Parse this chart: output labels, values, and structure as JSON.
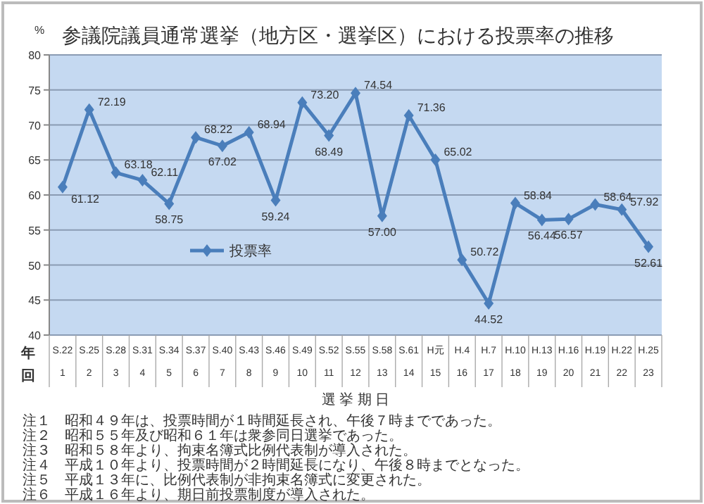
{
  "chart_data": {
    "type": "line",
    "title": "参議院議員通常選挙（地方区・選挙区）における投票率の推移",
    "ylabel": "%",
    "xlabel": "選 挙 期 日",
    "categories": [
      "S.22\n1",
      "S.25\n2",
      "S.28\n3",
      "S.31\n4",
      "S.34\n5",
      "S.37\n6",
      "S.40\n7",
      "S.43\n8",
      "S.46\n9",
      "S.49\n10",
      "S.52\n11",
      "S.55\n12",
      "S.58\n13",
      "S.61\n14",
      "H元\n15",
      "H.4\n16",
      "H.7\n17",
      "H.10\n18",
      "H.13\n19",
      "H.16\n20",
      "H.19\n21",
      "H.22\n22",
      "H.25\n23"
    ],
    "series": [
      {
        "name": "投票率",
        "color": "#4a7ebb",
        "values": [
          61.12,
          72.19,
          63.18,
          62.11,
          58.75,
          68.22,
          67.02,
          68.94,
          59.24,
          73.2,
          68.49,
          74.54,
          57.0,
          71.36,
          65.02,
          50.72,
          44.52,
          58.84,
          56.44,
          56.57,
          58.64,
          57.92,
          52.61
        ]
      }
    ],
    "value_labels": [
      "61.12",
      "72.19",
      "63.18",
      "62.11",
      "58.75",
      "68.22",
      "67.02",
      "68.94",
      "59.24",
      "73.20",
      "68.49",
      "74.54",
      "57.00",
      "71.36",
      "65.02",
      "50.72",
      "44.52",
      "58.84",
      "56.44",
      "56.57",
      "58.64",
      "57.92",
      "52.61"
    ],
    "ylim": [
      40,
      80
    ],
    "yticks": [
      40,
      45,
      50,
      55,
      60,
      65,
      70,
      75,
      80
    ],
    "grid": "y",
    "legend": "left",
    "marker": "diamond",
    "line_style": "solid",
    "annotations": [
      "年",
      "回",
      "注１　昭和４９年は、投票時間が１時間延長され、午後７時までであった。",
      "注２　昭和５５年及び昭和６１年は衆参同日選挙であった。",
      "注３　昭和５８年より、拘束名簿式比例代表制が導入された。",
      "注４　平成１０年より、投票時間が２時間延長になり、午後８時までとなった。",
      "注５　平成１３年に、比例代表制が非拘束名簿式に変更された。",
      "注６　平成１６年より、期日前投票制度が導入された。"
    ]
  }
}
